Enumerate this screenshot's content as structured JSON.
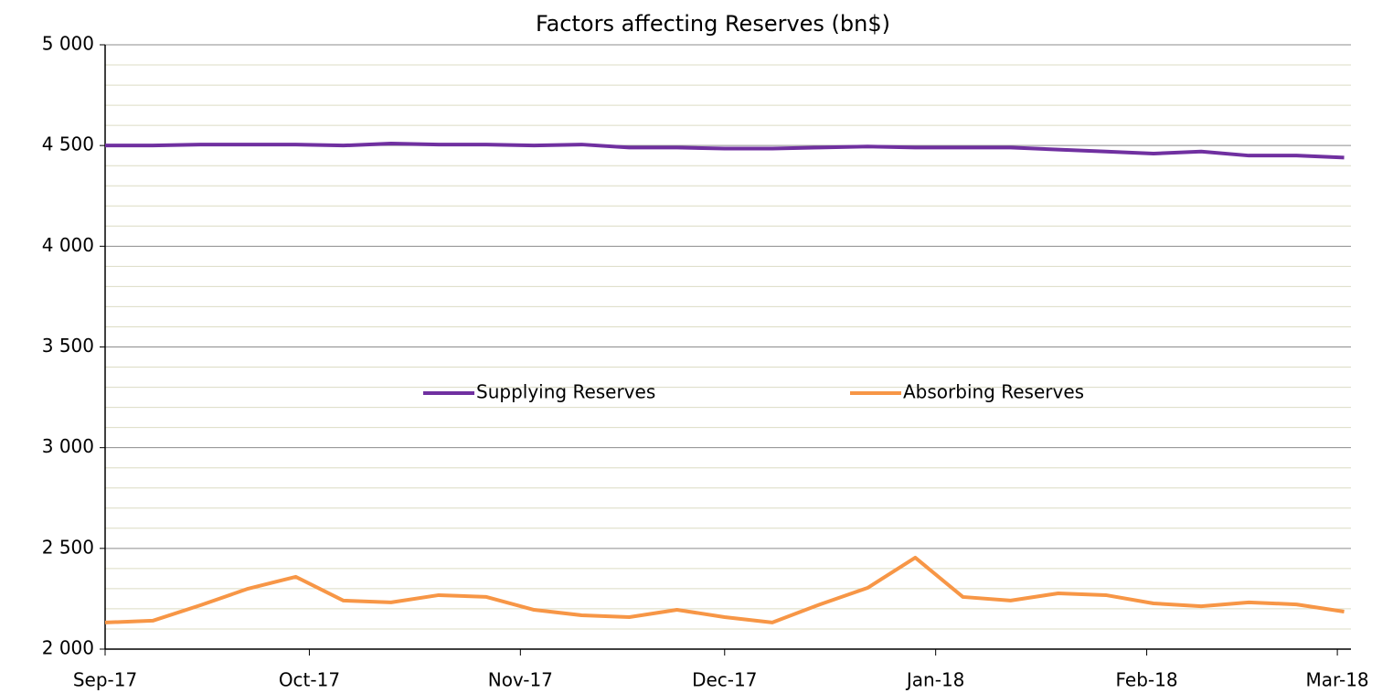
{
  "chart_data": {
    "type": "line",
    "title": "Factors affecting Reserves (bn$)",
    "x": [
      0,
      7,
      14,
      21,
      28,
      35,
      42,
      49,
      56,
      63,
      70,
      77,
      84,
      91,
      98,
      105,
      112,
      119,
      126,
      133,
      140,
      147,
      154,
      161,
      168,
      175,
      182
    ],
    "xlim": [
      0,
      183
    ],
    "xticks": [
      {
        "value": 0,
        "label": "Sep-17"
      },
      {
        "value": 30,
        "label": "Oct-17"
      },
      {
        "value": 61,
        "label": "Nov-17"
      },
      {
        "value": 91,
        "label": "Dec-17"
      },
      {
        "value": 122,
        "label": "Jan-18"
      },
      {
        "value": 153,
        "label": "Feb-18"
      },
      {
        "value": 181,
        "label": "Mar-18"
      }
    ],
    "ylim": [
      2000,
      5000
    ],
    "yticks": [
      {
        "value": 2000,
        "label": "2 000"
      },
      {
        "value": 2500,
        "label": "2 500"
      },
      {
        "value": 3000,
        "label": "3 000"
      },
      {
        "value": 3500,
        "label": "3 500"
      },
      {
        "value": 4000,
        "label": "4 000"
      },
      {
        "value": 4500,
        "label": "4 500"
      },
      {
        "value": 5000,
        "label": "5 000"
      }
    ],
    "yminor_ticks": [
      2100,
      2200,
      2300,
      2400,
      2600,
      2700,
      2800,
      2900,
      3100,
      3200,
      3300,
      3400,
      3600,
      3700,
      3800,
      3900,
      4100,
      4200,
      4300,
      4400,
      4600,
      4700,
      4800,
      4900
    ],
    "grid": true,
    "legend": "center",
    "series": [
      {
        "name": "Supplying Reserves",
        "color": "#7030a0",
        "values": [
          4500,
          4500,
          4505,
          4505,
          4505,
          4500,
          4510,
          4505,
          4505,
          4500,
          4505,
          4490,
          4490,
          4485,
          4485,
          4490,
          4495,
          4490,
          4490,
          4490,
          4480,
          4470,
          4460,
          4470,
          4450,
          4450,
          4440
        ]
      },
      {
        "name": "Absorbing Reserves",
        "color": "#f79646",
        "values": [
          2132,
          2141,
          2218,
          2300,
          2359,
          2241,
          2232,
          2268,
          2259,
          2195,
          2168,
          2159,
          2195,
          2159,
          2132,
          2222,
          2304,
          2454,
          2259,
          2241,
          2277,
          2268,
          2227,
          2213,
          2232,
          2222,
          2186
        ]
      }
    ]
  }
}
